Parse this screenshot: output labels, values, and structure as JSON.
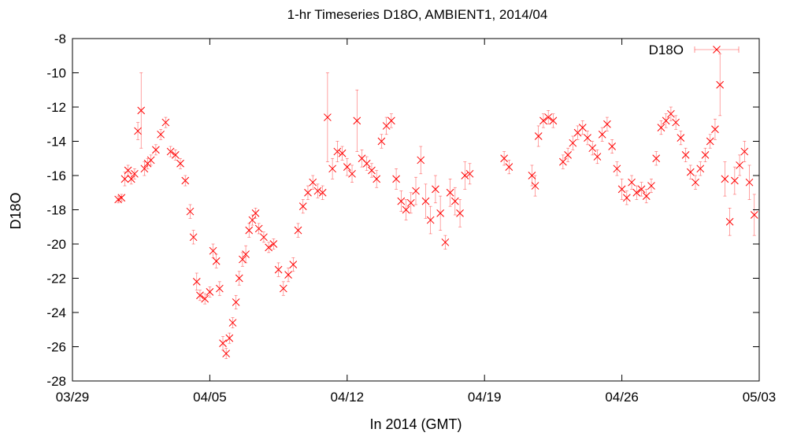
{
  "chart_data": {
    "type": "scatter",
    "title": "1-hr Timeseries D18O, AMBIENT1, 2014/04",
    "xlabel": "In 2014 (GMT)",
    "ylabel": "D18O",
    "ylim": [
      -28,
      -8
    ],
    "yticks": [
      -8,
      -10,
      -12,
      -14,
      -16,
      -18,
      -20,
      -22,
      -24,
      -26,
      -28
    ],
    "xlim": [
      "2014-03-29",
      "2014-05-03"
    ],
    "xticks": [
      "03/29",
      "04/05",
      "04/12",
      "04/19",
      "04/26",
      "05/03"
    ],
    "grid": false,
    "legend_position": "top-right",
    "marker": "x",
    "error_bars": true,
    "color": "#ff0000",
    "series": [
      {
        "name": "D18O",
        "points": [
          [
            "2014-03-31T08:00",
            -17.4,
            0.2
          ],
          [
            "2014-03-31T12:00",
            -17.3,
            0.2
          ],
          [
            "2014-03-31T16:00",
            -16.2,
            0.4
          ],
          [
            "2014-03-31T20:00",
            -15.7,
            0.3
          ],
          [
            "2014-04-01T00:00",
            -16.2,
            0.3
          ],
          [
            "2014-04-01T04:00",
            -15.9,
            0.3
          ],
          [
            "2014-04-01T08:00",
            -13.4,
            0.5
          ],
          [
            "2014-04-01T12:00",
            -12.2,
            2.2
          ],
          [
            "2014-04-01T16:00",
            -15.6,
            0.4
          ],
          [
            "2014-04-01T20:00",
            -15.3,
            0.3
          ],
          [
            "2014-04-02T00:00",
            -15.1,
            0.3
          ],
          [
            "2014-04-02T06:00",
            -14.5,
            0.3
          ],
          [
            "2014-04-02T12:00",
            -13.6,
            0.3
          ],
          [
            "2014-04-02T18:00",
            -12.9,
            0.3
          ],
          [
            "2014-04-03T00:00",
            -14.6,
            0.3
          ],
          [
            "2014-04-03T06:00",
            -14.8,
            0.3
          ],
          [
            "2014-04-03T12:00",
            -15.3,
            0.3
          ],
          [
            "2014-04-03T18:00",
            -16.3,
            0.3
          ],
          [
            "2014-04-04T00:00",
            -18.1,
            0.4
          ],
          [
            "2014-04-04T04:00",
            -19.6,
            0.4
          ],
          [
            "2014-04-04T08:00",
            -22.2,
            0.5
          ],
          [
            "2014-04-04T12:00",
            -23.0,
            0.3
          ],
          [
            "2014-04-04T18:00",
            -23.2,
            0.3
          ],
          [
            "2014-04-05T00:00",
            -22.8,
            0.3
          ],
          [
            "2014-04-05T04:00",
            -20.4,
            0.4
          ],
          [
            "2014-04-05T08:00",
            -21.0,
            0.4
          ],
          [
            "2014-04-05T12:00",
            -22.6,
            0.4
          ],
          [
            "2014-04-05T16:00",
            -25.8,
            0.4
          ],
          [
            "2014-04-05T20:00",
            -26.4,
            0.3
          ],
          [
            "2014-04-06T00:00",
            -25.5,
            0.3
          ],
          [
            "2014-04-06T04:00",
            -24.6,
            0.3
          ],
          [
            "2014-04-06T08:00",
            -23.4,
            0.4
          ],
          [
            "2014-04-06T12:00",
            -22.0,
            0.4
          ],
          [
            "2014-04-06T16:00",
            -20.9,
            0.4
          ],
          [
            "2014-04-06T20:00",
            -20.6,
            0.5
          ],
          [
            "2014-04-07T00:00",
            -19.2,
            0.4
          ],
          [
            "2014-04-07T04:00",
            -18.6,
            0.3
          ],
          [
            "2014-04-07T08:00",
            -18.2,
            0.3
          ],
          [
            "2014-04-07T12:00",
            -19.1,
            0.3
          ],
          [
            "2014-04-07T18:00",
            -19.6,
            0.3
          ],
          [
            "2014-04-08T00:00",
            -20.2,
            0.3
          ],
          [
            "2014-04-08T06:00",
            -20.0,
            0.3
          ],
          [
            "2014-04-08T12:00",
            -21.5,
            0.4
          ],
          [
            "2014-04-08T18:00",
            -22.6,
            0.4
          ],
          [
            "2014-04-09T00:00",
            -21.8,
            0.4
          ],
          [
            "2014-04-09T06:00",
            -21.2,
            0.4
          ],
          [
            "2014-04-09T12:00",
            -19.2,
            0.4
          ],
          [
            "2014-04-09T18:00",
            -17.8,
            0.4
          ],
          [
            "2014-04-10T00:00",
            -17.0,
            0.4
          ],
          [
            "2014-04-10T06:00",
            -16.4,
            0.4
          ],
          [
            "2014-04-10T12:00",
            -16.9,
            0.4
          ],
          [
            "2014-04-10T18:00",
            -17.0,
            0.4
          ],
          [
            "2014-04-11T00:00",
            -12.6,
            2.6
          ],
          [
            "2014-04-11T06:00",
            -15.6,
            0.6
          ],
          [
            "2014-04-11T12:00",
            -14.6,
            0.6
          ],
          [
            "2014-04-11T18:00",
            -14.7,
            0.4
          ],
          [
            "2014-04-12T00:00",
            -15.5,
            0.5
          ],
          [
            "2014-04-12T06:00",
            -15.9,
            0.5
          ],
          [
            "2014-04-12T12:00",
            -12.8,
            1.8
          ],
          [
            "2014-04-12T18:00",
            -15.0,
            0.5
          ],
          [
            "2014-04-13T00:00",
            -15.3,
            0.4
          ],
          [
            "2014-04-13T06:00",
            -15.7,
            0.4
          ],
          [
            "2014-04-13T12:00",
            -16.2,
            0.5
          ],
          [
            "2014-04-13T18:00",
            -14.0,
            0.4
          ],
          [
            "2014-04-14T00:00",
            -13.1,
            0.5
          ],
          [
            "2014-04-14T06:00",
            -12.8,
            0.4
          ],
          [
            "2014-04-14T12:00",
            -16.2,
            0.6
          ],
          [
            "2014-04-14T18:00",
            -17.5,
            0.6
          ],
          [
            "2014-04-15T00:00",
            -18.0,
            0.6
          ],
          [
            "2014-04-15T06:00",
            -17.6,
            0.6
          ],
          [
            "2014-04-15T12:00",
            -16.9,
            0.8
          ],
          [
            "2014-04-15T18:00",
            -15.1,
            0.8
          ],
          [
            "2014-04-16T00:00",
            -17.5,
            1.0
          ],
          [
            "2014-04-16T06:00",
            -18.6,
            0.8
          ],
          [
            "2014-04-16T12:00",
            -16.8,
            0.8
          ],
          [
            "2014-04-16T18:00",
            -18.2,
            1.0
          ],
          [
            "2014-04-17T00:00",
            -19.9,
            0.4
          ],
          [
            "2014-04-17T06:00",
            -17.0,
            0.8
          ],
          [
            "2014-04-17T12:00",
            -17.5,
            0.8
          ],
          [
            "2014-04-17T18:00",
            -18.2,
            0.8
          ],
          [
            "2014-04-18T00:00",
            -16.0,
            0.8
          ],
          [
            "2014-04-18T06:00",
            -15.9,
            0.6
          ],
          [
            "2014-04-20T00:00",
            -15.0,
            0.4
          ],
          [
            "2014-04-20T06:00",
            -15.5,
            0.4
          ],
          [
            "2014-04-21T10:00",
            -16.0,
            0.6
          ],
          [
            "2014-04-21T14:00",
            -16.6,
            0.6
          ],
          [
            "2014-04-21T18:00",
            -13.7,
            0.6
          ],
          [
            "2014-04-22T00:00",
            -12.8,
            0.4
          ],
          [
            "2014-04-22T06:00",
            -12.6,
            0.4
          ],
          [
            "2014-04-22T12:00",
            -12.8,
            0.4
          ],
          [
            "2014-04-23T00:00",
            -15.2,
            0.4
          ],
          [
            "2014-04-23T06:00",
            -14.8,
            0.4
          ],
          [
            "2014-04-23T12:00",
            -14.1,
            0.4
          ],
          [
            "2014-04-23T18:00",
            -13.5,
            0.4
          ],
          [
            "2014-04-24T00:00",
            -13.2,
            0.4
          ],
          [
            "2014-04-24T06:00",
            -13.8,
            0.4
          ],
          [
            "2014-04-24T12:00",
            -14.4,
            0.4
          ],
          [
            "2014-04-24T18:00",
            -14.9,
            0.4
          ],
          [
            "2014-04-25T00:00",
            -13.6,
            0.4
          ],
          [
            "2014-04-25T06:00",
            -13.0,
            0.4
          ],
          [
            "2014-04-25T12:00",
            -14.3,
            0.4
          ],
          [
            "2014-04-25T18:00",
            -15.6,
            0.4
          ],
          [
            "2014-04-26T00:00",
            -16.8,
            0.6
          ],
          [
            "2014-04-26T06:00",
            -17.3,
            0.4
          ],
          [
            "2014-04-26T12:00",
            -16.4,
            0.4
          ],
          [
            "2014-04-26T18:00",
            -17.0,
            0.4
          ],
          [
            "2014-04-27T00:00",
            -16.8,
            0.4
          ],
          [
            "2014-04-27T06:00",
            -17.2,
            0.4
          ],
          [
            "2014-04-27T12:00",
            -16.6,
            0.4
          ],
          [
            "2014-04-27T18:00",
            -15.0,
            0.4
          ],
          [
            "2014-04-28T00:00",
            -13.2,
            0.4
          ],
          [
            "2014-04-28T06:00",
            -12.8,
            0.4
          ],
          [
            "2014-04-28T12:00",
            -12.4,
            0.4
          ],
          [
            "2014-04-28T18:00",
            -12.9,
            0.4
          ],
          [
            "2014-04-29T00:00",
            -13.8,
            0.4
          ],
          [
            "2014-04-29T06:00",
            -14.8,
            0.4
          ],
          [
            "2014-04-29T12:00",
            -15.8,
            0.4
          ],
          [
            "2014-04-29T18:00",
            -16.4,
            0.4
          ],
          [
            "2014-04-30T00:00",
            -15.6,
            0.4
          ],
          [
            "2014-04-30T06:00",
            -14.8,
            0.4
          ],
          [
            "2014-04-30T12:00",
            -14.0,
            0.4
          ],
          [
            "2014-04-30T18:00",
            -13.3,
            0.6
          ],
          [
            "2014-05-01T00:00",
            -10.7,
            1.8
          ],
          [
            "2014-05-01T06:00",
            -16.2,
            1.0
          ],
          [
            "2014-05-01T12:00",
            -18.7,
            0.8
          ],
          [
            "2014-05-01T18:00",
            -16.3,
            0.8
          ],
          [
            "2014-05-02T00:00",
            -15.4,
            0.6
          ],
          [
            "2014-05-02T06:00",
            -14.6,
            0.6
          ],
          [
            "2014-05-02T12:00",
            -16.4,
            1.0
          ],
          [
            "2014-05-02T18:00",
            -18.3,
            1.2
          ]
        ]
      }
    ]
  }
}
